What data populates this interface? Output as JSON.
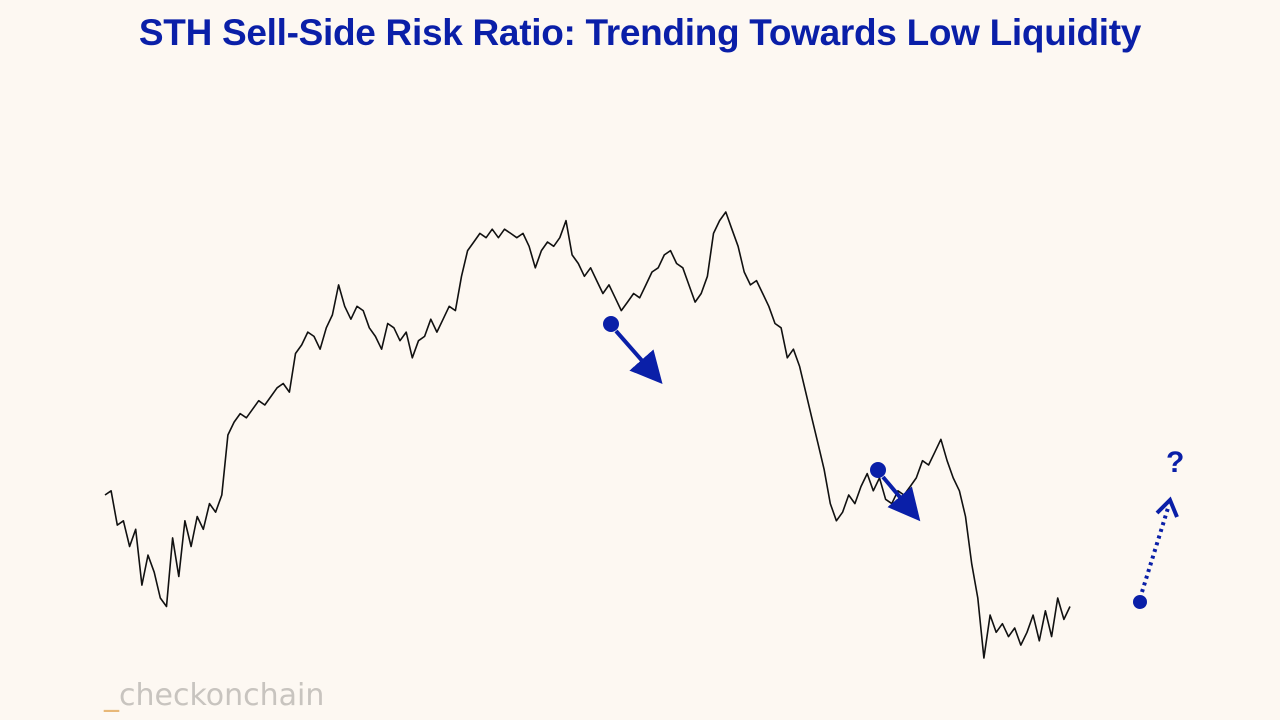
{
  "chart_data": {
    "type": "line",
    "title": "STH Sell-Side Risk Ratio: Trending Towards Low Liquidity",
    "xlabel": "",
    "ylabel": "",
    "grid": false,
    "legend": "none",
    "line_color": "#111111",
    "accent_color": "#0a1fa8",
    "series": [
      {
        "values": [
          0.3,
          0.31,
          0.23,
          0.24,
          0.18,
          0.22,
          0.09,
          0.16,
          0.12,
          0.06,
          0.04,
          0.2,
          0.11,
          0.24,
          0.18,
          0.25,
          0.22,
          0.28,
          0.26,
          0.3,
          0.44,
          0.47,
          0.49,
          0.48,
          0.5,
          0.52,
          0.51,
          0.53,
          0.55,
          0.56,
          0.54,
          0.63,
          0.65,
          0.68,
          0.67,
          0.64,
          0.69,
          0.72,
          0.79,
          0.74,
          0.71,
          0.74,
          0.73,
          0.69,
          0.67,
          0.64,
          0.7,
          0.69,
          0.66,
          0.68,
          0.62,
          0.66,
          0.67,
          0.71,
          0.68,
          0.71,
          0.74,
          0.73,
          0.81,
          0.87,
          0.89,
          0.91,
          0.9,
          0.92,
          0.9,
          0.92,
          0.91,
          0.9,
          0.91,
          0.88,
          0.83,
          0.87,
          0.89,
          0.88,
          0.9,
          0.94,
          0.86,
          0.84,
          0.81,
          0.83,
          0.8,
          0.77,
          0.79,
          0.76,
          0.73,
          0.75,
          0.77,
          0.76,
          0.79,
          0.82,
          0.83,
          0.86,
          0.87,
          0.84,
          0.83,
          0.79,
          0.75,
          0.77,
          0.81,
          0.91,
          0.94,
          0.96,
          0.92,
          0.88,
          0.82,
          0.79,
          0.8,
          0.77,
          0.74,
          0.7,
          0.69,
          0.62,
          0.64,
          0.6,
          0.54,
          0.48,
          0.42,
          0.36,
          0.28,
          0.24,
          0.26,
          0.3,
          0.28,
          0.32,
          0.35,
          0.31,
          0.34,
          0.29,
          0.28,
          0.31,
          0.3,
          0.32,
          0.34,
          0.38,
          0.37,
          0.4,
          0.43,
          0.38,
          0.34,
          0.31,
          0.25,
          0.14,
          0.06,
          -0.08,
          0.02,
          -0.02,
          0.0,
          -0.03,
          -0.01,
          -0.05,
          -0.02,
          0.02,
          -0.04,
          0.03,
          -0.03,
          0.06,
          0.01,
          0.04
        ]
      }
    ],
    "annotations": [
      {
        "type": "arrow-down",
        "style": "solid"
      },
      {
        "type": "arrow-down",
        "style": "solid"
      },
      {
        "type": "arrow-up",
        "style": "dotted",
        "label": "?"
      }
    ]
  },
  "watermark": {
    "prefix": "_",
    "text": "checkonchain"
  }
}
